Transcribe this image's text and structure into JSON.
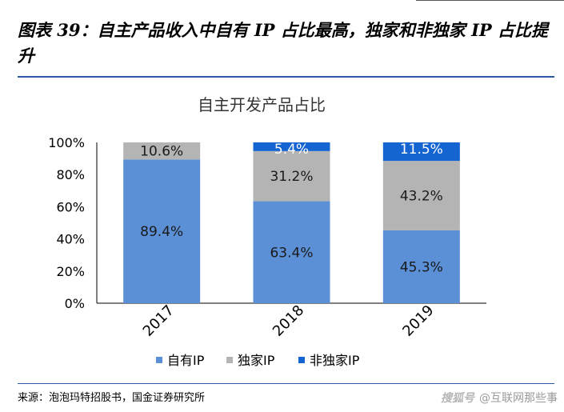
{
  "figure": {
    "title": "图表 39：自主产品收入中自有 IP 占比最高，独家和非独家 IP 占比提升",
    "source": "来源：泡泡玛特招股书，国金证券研究所",
    "watermark_logo": "搜狐号",
    "watermark_text": "@互联网那些事"
  },
  "chart_data": {
    "type": "bar",
    "stacked": true,
    "title": "自主开发产品占比",
    "categories": [
      "2017",
      "2018",
      "2019"
    ],
    "series": [
      {
        "name": "自有IP",
        "color": "#5b8fd6",
        "values": [
          89.4,
          63.4,
          45.3
        ],
        "labels": [
          "89.4%",
          "63.4%",
          "45.3%"
        ]
      },
      {
        "name": "独家IP",
        "color": "#b4b4b4",
        "values": [
          10.6,
          31.2,
          43.2
        ],
        "labels": [
          "10.6%",
          "31.2%",
          "43.2%"
        ]
      },
      {
        "name": "非独家IP",
        "color": "#1464d2",
        "values": [
          0,
          5.4,
          11.5
        ],
        "labels": [
          "",
          "5.4%",
          "11.5%"
        ]
      }
    ],
    "yticks": [
      "0%",
      "20%",
      "40%",
      "60%",
      "80%",
      "100%"
    ],
    "ylim": [
      0,
      100
    ],
    "xlabel": "",
    "ylabel": "",
    "grid": false,
    "legend_position": "bottom"
  }
}
